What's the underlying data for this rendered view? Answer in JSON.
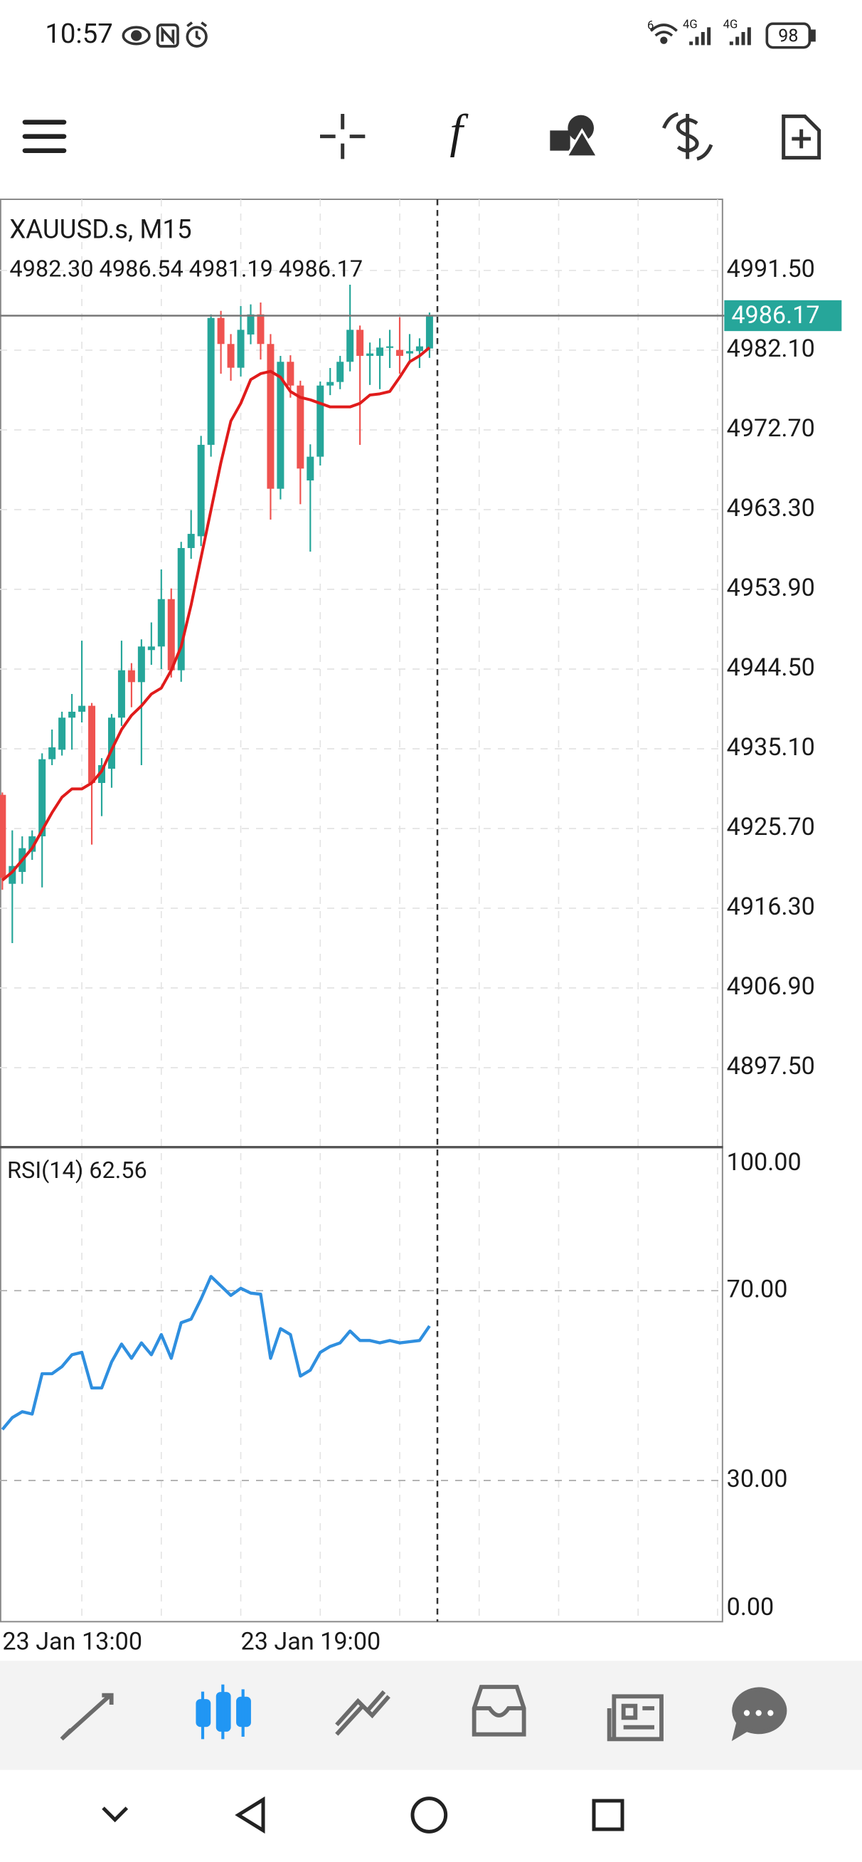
{
  "status_bar": {
    "time": "10:57",
    "wifi": "6",
    "signal": [
      "4G",
      "4G"
    ],
    "battery": "98"
  },
  "toolbar": {
    "function_icon": "f"
  },
  "chart_data": [
    {
      "type": "candlestick",
      "title": "XAUUSD.s, M15",
      "subtitle": "4982.30 4986.54 4981.19 4986.17",
      "last_price": {
        "value": 4986.17,
        "label": "4986.17"
      },
      "categories": [
        "23 Jan 13:00",
        null,
        null,
        null,
        null,
        null,
        null,
        null,
        null,
        null,
        null,
        null,
        null,
        null,
        null,
        null,
        null,
        null,
        null,
        null,
        null,
        null,
        null,
        null,
        "23 Jan 19:00",
        null,
        null,
        null,
        null,
        null,
        null,
        null,
        null,
        null,
        null,
        null,
        null,
        null,
        null,
        null,
        null,
        null,
        null,
        null
      ],
      "open": [
        4929.67,
        4919.18,
        4920.58,
        4922.96,
        4924.78,
        4933.87,
        4934.99,
        4938.77,
        4939.47,
        4940.17,
        4931.07,
        4932.75,
        4938.77,
        4944.36,
        4942.96,
        4946.74,
        4947.16,
        4952.75,
        4944.36,
        4958.77,
        4960.16,
        4970.94,
        4985.9,
        4982.83,
        4980.03,
        4983.95,
        4986.32,
        4982.83,
        4965.76,
        4980.73,
        4977.93,
        4966.74,
        4969.54,
        4977.93,
        4978.35,
        4980.73,
        4984.5,
        4981.43,
        4981.43,
        4982.41,
        4982.13,
        4981.71,
        4981.99,
        4982.3
      ],
      "high": [
        4929.95,
        4925.48,
        4924.78,
        4925.48,
        4934.57,
        4937.37,
        4939.47,
        4941.56,
        4947.85,
        4940.5,
        4934.0,
        4939.2,
        4947.85,
        4945.2,
        4948.0,
        4950.0,
        4956.25,
        4954.0,
        4959.5,
        4963.24,
        4972.0,
        4986.32,
        4986.74,
        4984.0,
        4987.3,
        4987.5,
        4987.72,
        4984.0,
        4981.43,
        4981.5,
        4978.5,
        4971.0,
        4978.4,
        4980.0,
        4981.43,
        4989.82,
        4985.0,
        4983.0,
        4983.5,
        4984.5,
        4986.0,
        4984.0,
        4983.5,
        4986.54
      ],
      "low": [
        4918.48,
        4912.19,
        4919.18,
        4922.0,
        4918.76,
        4933.17,
        4934.3,
        4935.0,
        4938.2,
        4923.8,
        4927.16,
        4930.5,
        4937.8,
        4940.0,
        4933.17,
        4945.0,
        4944.5,
        4943.5,
        4943.0,
        4957.5,
        4959.0,
        4969.54,
        4979.33,
        4978.5,
        4979.0,
        4982.8,
        4981.0,
        4962.12,
        4964.5,
        4976.5,
        4963.94,
        4958.35,
        4968.5,
        4976.8,
        4977.5,
        4979.6,
        4970.94,
        4978.0,
        4977.5,
        4980.0,
        4979.33,
        4980.5,
        4980.0,
        4981.19
      ],
      "close": [
        4919.88,
        4921.28,
        4923.38,
        4924.78,
        4933.87,
        4935.27,
        4938.77,
        4939.47,
        4940.17,
        4931.07,
        4933.17,
        4938.77,
        4944.36,
        4942.96,
        4947.16,
        4947.16,
        4952.75,
        4944.36,
        4958.77,
        4960.44,
        4970.94,
        4985.9,
        4982.83,
        4980.03,
        4984.5,
        4986.32,
        4982.83,
        4965.76,
        4980.73,
        4977.93,
        4968.14,
        4969.54,
        4977.93,
        4978.35,
        4980.73,
        4984.5,
        4981.43,
        4981.71,
        4982.41,
        4982.55,
        4981.43,
        4981.99,
        4982.55,
        4986.17
      ],
      "up_color": "#26a69a",
      "down_color": "#ef5350",
      "series": [
        {
          "color": "#e01b1b",
          "values": [
            4919.6,
            4920.58,
            4921.98,
            4923.38,
            4925.48,
            4927.57,
            4929.39,
            4930.37,
            4930.37,
            4931.07,
            4932.47,
            4934.99,
            4937.37,
            4939.04,
            4940.16,
            4941.56,
            4942.26,
            4944.36,
            4947.16,
            4952.05,
            4957.65,
            4963.24,
            4968.84,
            4973.74,
            4975.83,
            4978.63,
            4979.33,
            4979.61,
            4978.91,
            4977.23,
            4976.53,
            4976.25,
            4975.83,
            4975.41,
            4975.41,
            4975.41,
            4975.83,
            4976.81,
            4976.95,
            4977.23,
            4978.91,
            4980.73,
            4981.43,
            4982.41
          ]
        }
      ],
      "ylim": [
        4888.13,
        4999.89
      ],
      "yticks": [
        {
          "value": 4991.5,
          "label": "4991.50"
        },
        {
          "value": 4982.1,
          "label": "4982.10"
        },
        {
          "value": 4972.7,
          "label": "4972.70"
        },
        {
          "value": 4963.3,
          "label": "4963.30"
        },
        {
          "value": 4953.9,
          "label": "4953.90"
        },
        {
          "value": 4944.5,
          "label": "4944.50"
        },
        {
          "value": 4935.1,
          "label": "4935.10"
        },
        {
          "value": 4925.7,
          "label": "4925.70"
        },
        {
          "value": 4916.3,
          "label": "4916.30"
        },
        {
          "value": 4906.9,
          "label": "4906.90"
        },
        {
          "value": 4897.5,
          "label": "4897.50"
        }
      ],
      "grid": true
    },
    {
      "type": "line",
      "title": "RSI(14) 62.56",
      "series": [
        {
          "color": "#2f8fdf",
          "values": [
            40.75,
            43.25,
            44.5,
            44,
            52.5,
            52.5,
            54,
            56.5,
            57,
            49.5,
            49.5,
            55,
            58.75,
            55.75,
            59,
            56.5,
            60.75,
            55.75,
            63.25,
            64,
            68.25,
            73,
            71,
            69,
            70.5,
            69.5,
            69.25,
            55.75,
            62,
            60.75,
            52,
            53.25,
            57,
            58.25,
            59,
            61.5,
            59.5,
            59.5,
            59,
            59.5,
            59,
            59.25,
            59.5,
            62.56
          ]
        }
      ],
      "ylim": [
        0,
        100
      ],
      "yticks": [
        {
          "value": 100,
          "label": "100.00"
        },
        {
          "value": 70,
          "label": "70.00"
        },
        {
          "value": 30,
          "label": "30.00"
        },
        {
          "value": 0,
          "label": "0.00"
        }
      ],
      "grid": true
    }
  ]
}
